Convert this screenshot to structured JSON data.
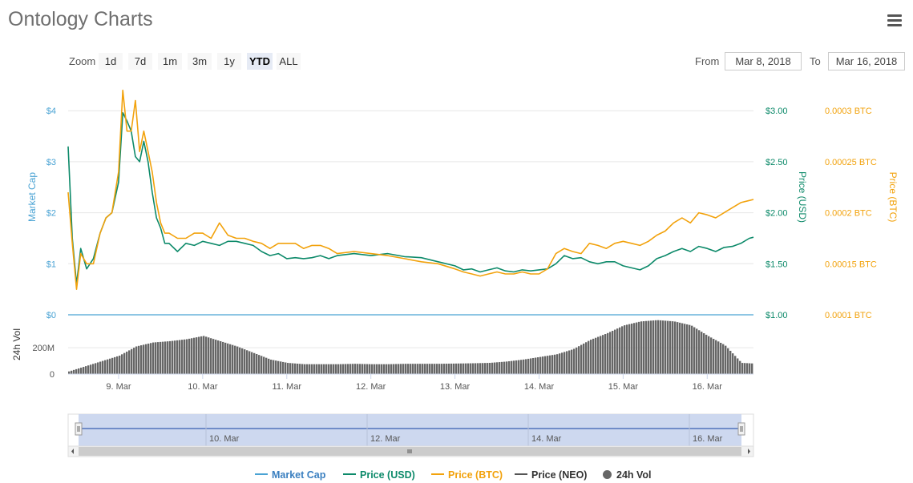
{
  "title": "Ontology Charts",
  "zoom": {
    "label": "Zoom",
    "buttons": [
      "1d",
      "7d",
      "1m",
      "3m",
      "1y",
      "YTD",
      "ALL"
    ],
    "active": "YTD"
  },
  "range": {
    "from_label": "From",
    "from_value": "Mar 8, 2018",
    "to_label": "To",
    "to_value": "Mar 16, 2018"
  },
  "colors": {
    "market_cap": "#4aa3d4",
    "price_usd": "#0d8a6a",
    "price_btc": "#f2a20c",
    "price_neo": "#555555",
    "volume": "#666666"
  },
  "chart_data": {
    "type": "line",
    "x_axis": {
      "tick_labels": [
        "9. Mar",
        "10. Mar",
        "11. Mar",
        "12. Mar",
        "13. Mar",
        "14. Mar",
        "15. Mar",
        "16. Mar"
      ]
    },
    "axes": {
      "market_cap": {
        "label": "Market Cap",
        "tick_labels": [
          "$0",
          "$1",
          "$2",
          "$3",
          "$4"
        ],
        "range": [
          0,
          4.6
        ]
      },
      "price_usd": {
        "label": "Price (USD)",
        "tick_labels": [
          "$1.00",
          "$1.50",
          "$2.00",
          "$2.50",
          "$3.00"
        ],
        "range": [
          1.0,
          3.3
        ]
      },
      "price_btc": {
        "label": "Price (BTC)",
        "tick_labels": [
          "0.0001 BTC",
          "0.00015 BTC",
          "0.0002 BTC",
          "0.00025 BTC",
          "0.0003 BTC"
        ],
        "range": [
          0.0001,
          0.00033
        ]
      },
      "volume": {
        "label": "24h Vol",
        "tick_labels": [
          "0",
          "200M"
        ],
        "range": [
          0,
          420
        ]
      }
    },
    "day_range": [
      8.4,
      16.55
    ],
    "series": [
      {
        "name": "Price (USD)",
        "axis": "price_usd",
        "x": [
          8.4,
          8.45,
          8.5,
          8.55,
          8.62,
          8.7,
          8.78,
          8.85,
          8.92,
          9.0,
          9.05,
          9.1,
          9.15,
          9.2,
          9.25,
          9.3,
          9.35,
          9.4,
          9.45,
          9.5,
          9.55,
          9.6,
          9.7,
          9.8,
          9.9,
          10.0,
          10.1,
          10.2,
          10.3,
          10.4,
          10.5,
          10.6,
          10.7,
          10.8,
          10.9,
          11.0,
          11.1,
          11.2,
          11.3,
          11.4,
          11.5,
          11.6,
          11.8,
          12.0,
          12.2,
          12.4,
          12.6,
          12.8,
          13.0,
          13.1,
          13.2,
          13.3,
          13.4,
          13.5,
          13.6,
          13.7,
          13.8,
          13.9,
          14.0,
          14.1,
          14.2,
          14.3,
          14.4,
          14.5,
          14.6,
          14.7,
          14.8,
          14.9,
          15.0,
          15.1,
          15.2,
          15.3,
          15.4,
          15.5,
          15.6,
          15.7,
          15.8,
          15.9,
          16.0,
          16.1,
          16.2,
          16.3,
          16.4,
          16.5,
          16.55
        ],
        "values": [
          2.65,
          1.75,
          1.3,
          1.65,
          1.45,
          1.55,
          1.8,
          1.95,
          2.0,
          2.3,
          2.98,
          2.9,
          2.8,
          2.55,
          2.5,
          2.7,
          2.5,
          2.2,
          1.95,
          1.85,
          1.7,
          1.7,
          1.62,
          1.7,
          1.68,
          1.72,
          1.7,
          1.68,
          1.72,
          1.72,
          1.7,
          1.68,
          1.62,
          1.58,
          1.6,
          1.55,
          1.56,
          1.55,
          1.56,
          1.58,
          1.55,
          1.58,
          1.6,
          1.58,
          1.6,
          1.57,
          1.56,
          1.52,
          1.48,
          1.44,
          1.45,
          1.42,
          1.44,
          1.46,
          1.43,
          1.42,
          1.44,
          1.43,
          1.44,
          1.45,
          1.5,
          1.58,
          1.55,
          1.56,
          1.52,
          1.5,
          1.52,
          1.52,
          1.48,
          1.46,
          1.44,
          1.48,
          1.55,
          1.58,
          1.62,
          1.65,
          1.62,
          1.67,
          1.65,
          1.62,
          1.66,
          1.67,
          1.7,
          1.75,
          1.76
        ]
      },
      {
        "name": "Price (BTC)",
        "axis": "price_btc",
        "x": [
          8.4,
          8.45,
          8.5,
          8.55,
          8.62,
          8.7,
          8.78,
          8.85,
          8.92,
          9.0,
          9.05,
          9.1,
          9.15,
          9.2,
          9.25,
          9.3,
          9.35,
          9.4,
          9.45,
          9.5,
          9.55,
          9.6,
          9.7,
          9.8,
          9.9,
          10.0,
          10.1,
          10.2,
          10.3,
          10.4,
          10.5,
          10.6,
          10.7,
          10.8,
          10.9,
          11.0,
          11.1,
          11.2,
          11.3,
          11.4,
          11.5,
          11.6,
          11.8,
          12.0,
          12.2,
          12.4,
          12.6,
          12.8,
          13.0,
          13.1,
          13.2,
          13.3,
          13.4,
          13.5,
          13.6,
          13.7,
          13.8,
          13.9,
          14.0,
          14.1,
          14.2,
          14.3,
          14.4,
          14.5,
          14.6,
          14.7,
          14.8,
          14.9,
          15.0,
          15.1,
          15.2,
          15.3,
          15.4,
          15.5,
          15.6,
          15.7,
          15.8,
          15.9,
          16.0,
          16.1,
          16.2,
          16.3,
          16.4,
          16.5,
          16.55
        ],
        "values": [
          0.00022,
          0.00017,
          0.000125,
          0.00016,
          0.00015,
          0.00015,
          0.00018,
          0.000195,
          0.0002,
          0.00024,
          0.00032,
          0.00028,
          0.00028,
          0.00031,
          0.00026,
          0.00028,
          0.00026,
          0.00024,
          0.00021,
          0.00019,
          0.00018,
          0.00018,
          0.000175,
          0.000175,
          0.00018,
          0.00018,
          0.000175,
          0.00019,
          0.000178,
          0.000175,
          0.000175,
          0.000172,
          0.00017,
          0.000165,
          0.00017,
          0.00017,
          0.00017,
          0.000165,
          0.000168,
          0.000168,
          0.000165,
          0.00016,
          0.000162,
          0.00016,
          0.000158,
          0.000155,
          0.000152,
          0.00015,
          0.000145,
          0.000142,
          0.00014,
          0.000138,
          0.00014,
          0.000142,
          0.00014,
          0.00014,
          0.000142,
          0.00014,
          0.00014,
          0.000145,
          0.00016,
          0.000165,
          0.000162,
          0.00016,
          0.00017,
          0.000168,
          0.000165,
          0.00017,
          0.000172,
          0.00017,
          0.000168,
          0.000172,
          0.000178,
          0.000182,
          0.00019,
          0.000195,
          0.00019,
          0.0002,
          0.000198,
          0.000195,
          0.0002,
          0.000205,
          0.00021,
          0.000212,
          0.000213
        ]
      },
      {
        "name": "24h Vol",
        "axis": "volume",
        "type": "bar",
        "x": [
          8.4,
          8.6,
          8.8,
          9.0,
          9.2,
          9.4,
          9.6,
          9.8,
          10.0,
          10.2,
          10.4,
          10.6,
          10.8,
          11.0,
          11.2,
          11.4,
          11.6,
          11.8,
          12.0,
          12.2,
          12.4,
          12.6,
          12.8,
          13.0,
          13.2,
          13.4,
          13.6,
          13.8,
          14.0,
          14.2,
          14.4,
          14.6,
          14.8,
          15.0,
          15.2,
          15.4,
          15.6,
          15.8,
          16.0,
          16.2,
          16.4,
          16.55
        ],
        "values": [
          20,
          60,
          100,
          140,
          210,
          240,
          250,
          265,
          290,
          250,
          210,
          160,
          110,
          85,
          75,
          75,
          75,
          78,
          75,
          75,
          78,
          78,
          78,
          80,
          82,
          85,
          95,
          110,
          130,
          150,
          190,
          260,
          310,
          370,
          400,
          410,
          400,
          370,
          290,
          220,
          85,
          80
        ]
      }
    ],
    "navigator": {
      "tick_labels": [
        "10. Mar",
        "12. Mar",
        "14. Mar",
        "16. Mar"
      ]
    }
  },
  "legend": [
    {
      "label": "Market Cap",
      "color": "#4aa3d4",
      "symbol": "line"
    },
    {
      "label": "Price (USD)",
      "color": "#0d8a6a",
      "symbol": "line"
    },
    {
      "label": "Price (BTC)",
      "color": "#f2a20c",
      "symbol": "line"
    },
    {
      "label": "Price (NEO)",
      "color": "#555555",
      "symbol": "line"
    },
    {
      "label": "24h Vol",
      "color": "#666666",
      "symbol": "circle"
    }
  ]
}
